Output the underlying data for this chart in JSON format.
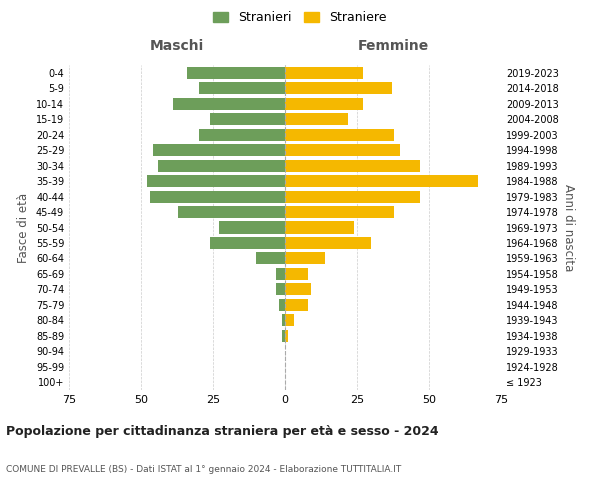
{
  "age_groups": [
    "100+",
    "95-99",
    "90-94",
    "85-89",
    "80-84",
    "75-79",
    "70-74",
    "65-69",
    "60-64",
    "55-59",
    "50-54",
    "45-49",
    "40-44",
    "35-39",
    "30-34",
    "25-29",
    "20-24",
    "15-19",
    "10-14",
    "5-9",
    "0-4"
  ],
  "birth_years": [
    "≤ 1923",
    "1924-1928",
    "1929-1933",
    "1934-1938",
    "1939-1943",
    "1944-1948",
    "1949-1953",
    "1954-1958",
    "1959-1963",
    "1964-1968",
    "1969-1973",
    "1974-1978",
    "1979-1983",
    "1984-1988",
    "1989-1993",
    "1994-1998",
    "1999-2003",
    "2004-2008",
    "2009-2013",
    "2014-2018",
    "2019-2023"
  ],
  "maschi": [
    0,
    0,
    0,
    1,
    1,
    2,
    3,
    3,
    10,
    26,
    23,
    37,
    47,
    48,
    44,
    46,
    30,
    26,
    39,
    30,
    34
  ],
  "femmine": [
    0,
    0,
    0,
    1,
    3,
    8,
    9,
    8,
    14,
    30,
    24,
    38,
    47,
    67,
    47,
    40,
    38,
    22,
    27,
    37,
    27
  ],
  "male_color": "#6d9e5a",
  "female_color": "#f5b800",
  "title": "Popolazione per cittadinanza straniera per età e sesso - 2024",
  "subtitle": "COMUNE DI PREVALLE (BS) - Dati ISTAT al 1° gennaio 2024 - Elaborazione TUTTITALIA.IT",
  "legend_male": "Stranieri",
  "legend_female": "Straniere",
  "xlabel_left": "Maschi",
  "xlabel_right": "Femmine",
  "ylabel_left": "Fasce di età",
  "ylabel_right": "Anni di nascita",
  "xlim": 75,
  "background_color": "#ffffff"
}
